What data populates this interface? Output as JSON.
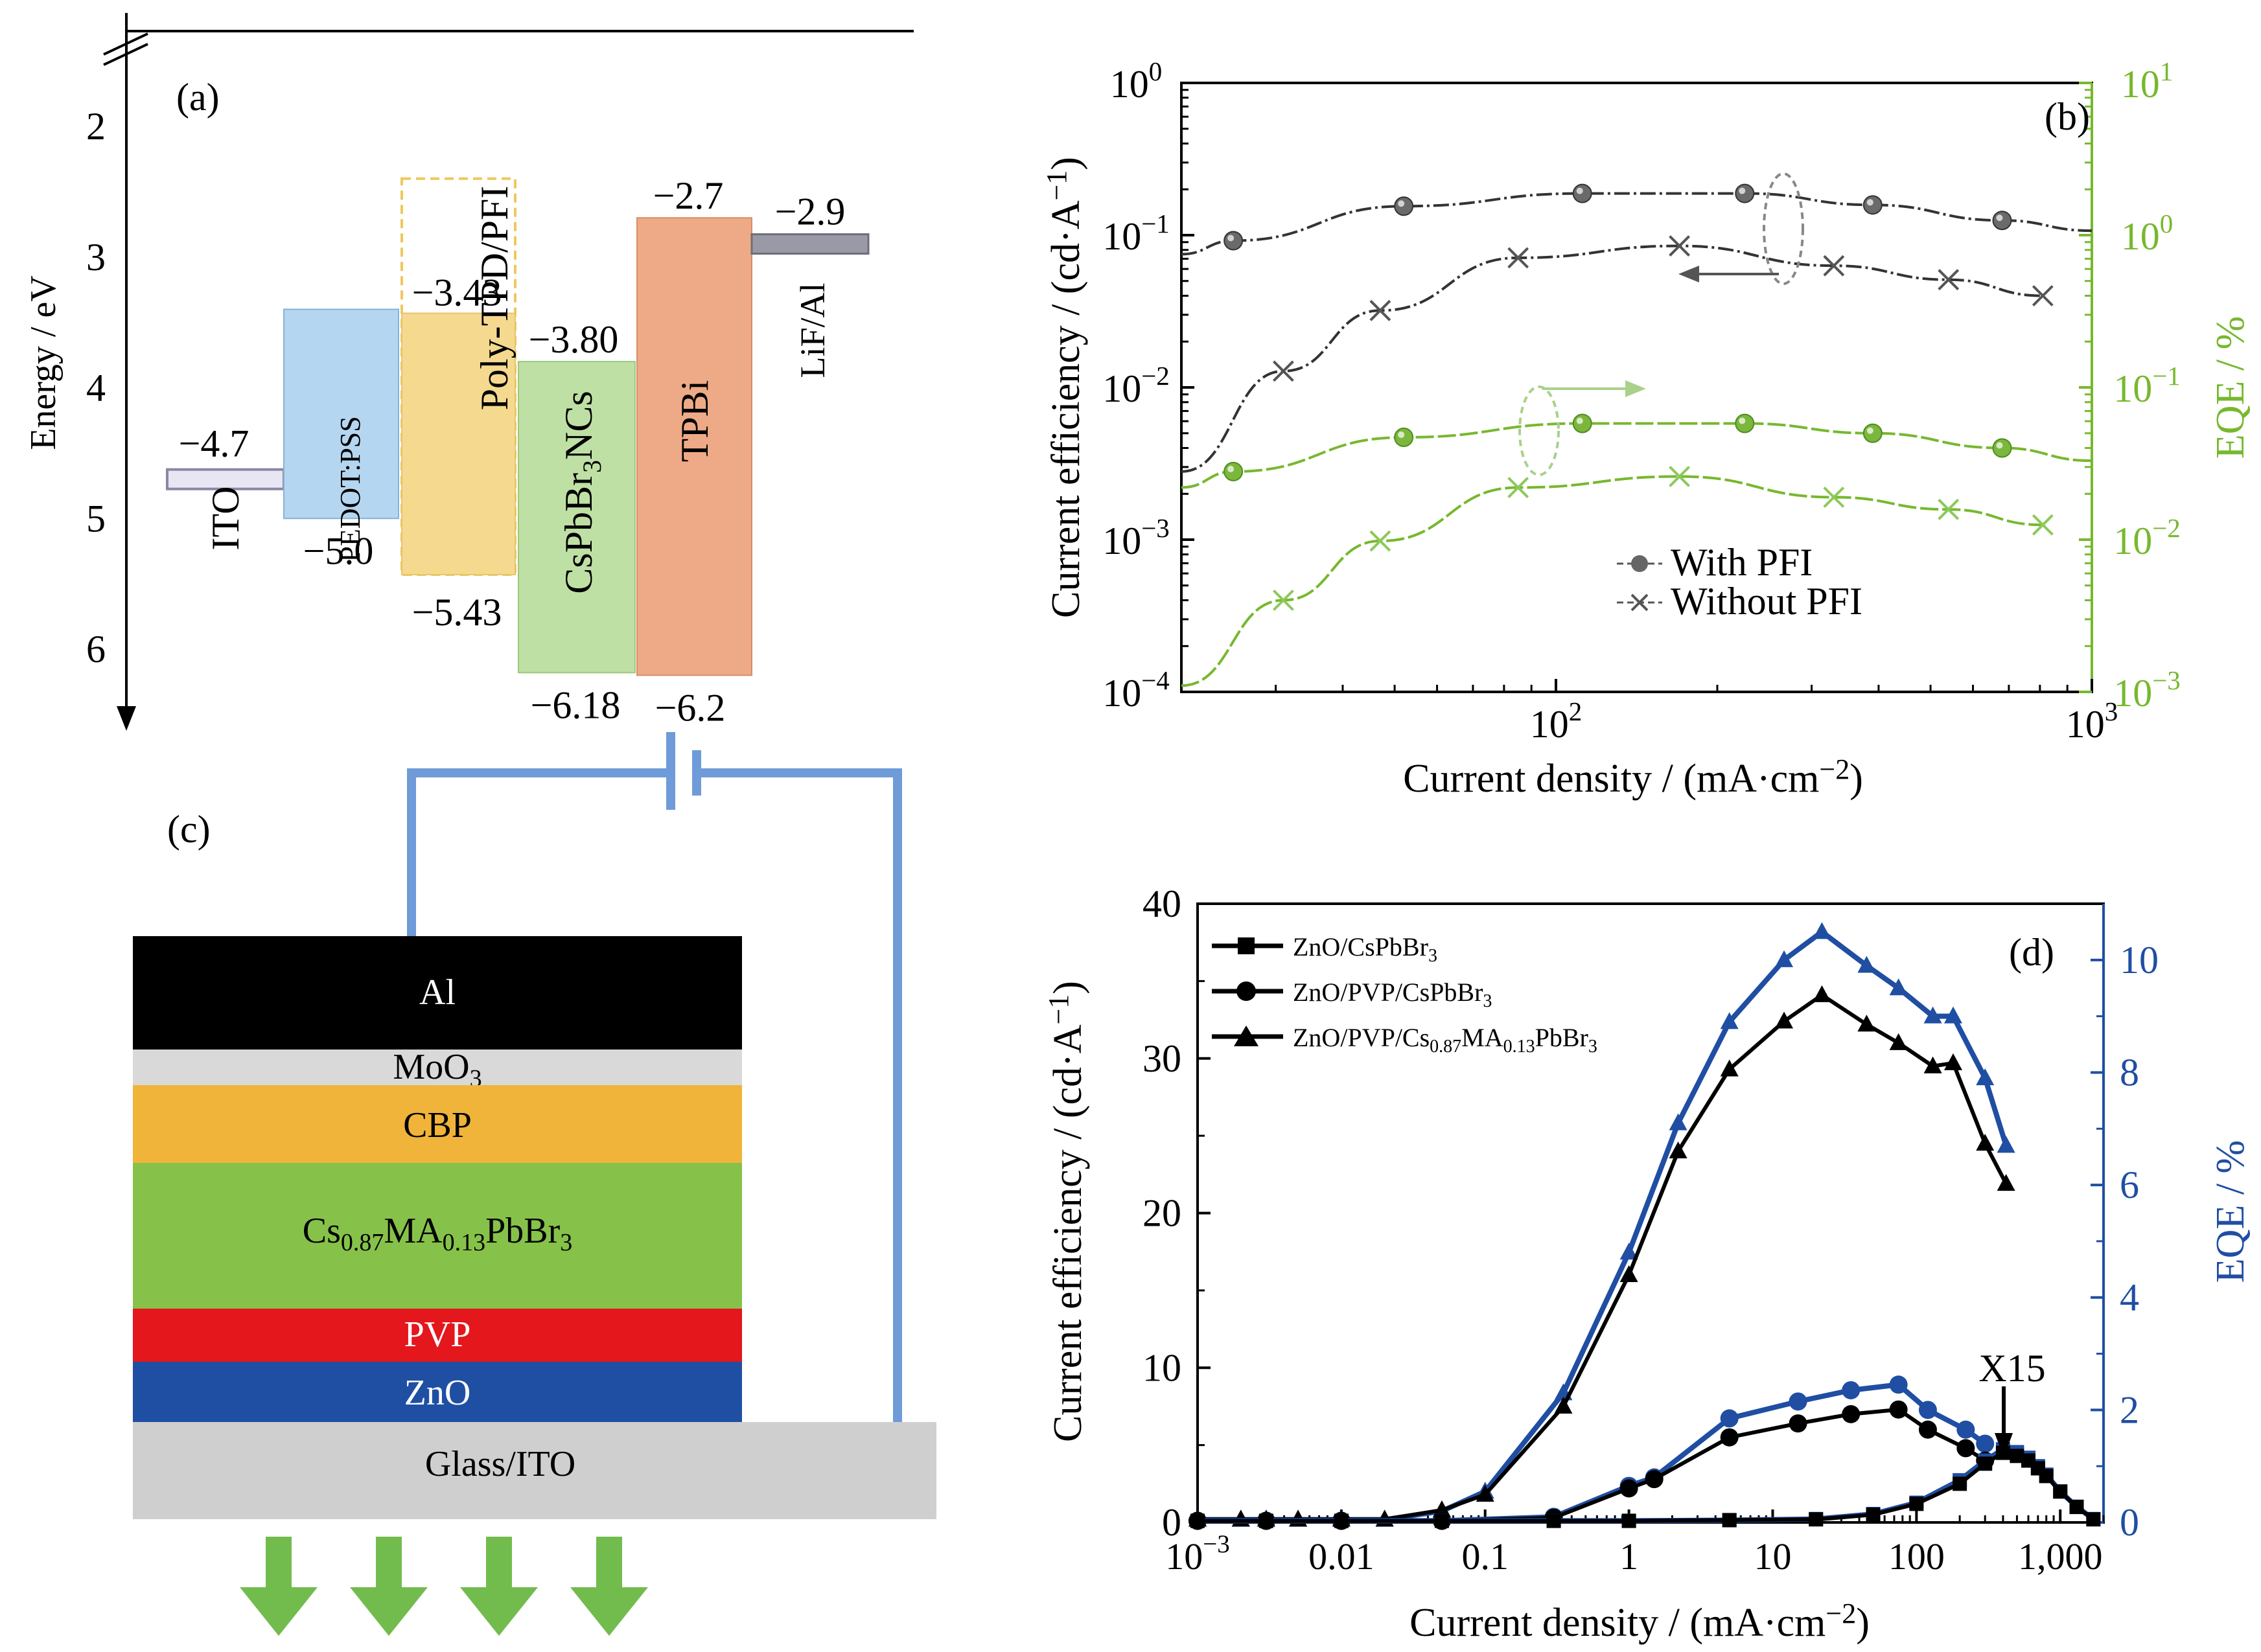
{
  "panels": {
    "a": {
      "label": "(a)"
    },
    "b": {
      "label": "(b)"
    },
    "c": {
      "label": "(c)"
    },
    "d": {
      "label": "(d)"
    }
  },
  "colors": {
    "ito": "#e8e6f2",
    "pedot": "#b5d6f0",
    "polytpd": "#f5d98e",
    "cspbbr3": "#bfe0a4",
    "tpbi": "#eeaa86",
    "lif": "#9a9aa6",
    "green_curve": "#77b82e",
    "blue_curve": "#1f4ea3",
    "wire": "#6f9bd8",
    "al_layer": "#000000",
    "moo3_layer": "#d9d9d9",
    "cbp_layer": "#f0b43a",
    "perov_layer": "#86c24a",
    "pvp_layer": "#e3171c",
    "zno_layer": "#1f4fa3",
    "glass_layer": "#cfcfcf",
    "arrow_green": "#72bc4e"
  },
  "chart_data": [
    {
      "id": "a",
      "type": "energy-level-diagram",
      "ylabel": "Energy / eV",
      "ylim": [
        1.0,
        7.0
      ],
      "y_inverted": true,
      "y_ticks": [
        "2",
        "3",
        "4",
        "5",
        "6"
      ],
      "layers": [
        {
          "name": "ITO",
          "top": -4.7,
          "bottom": -4.7,
          "labels": [
            "−4.7"
          ]
        },
        {
          "name": "PEDOT:PSS",
          "top": -3.4,
          "bottom": -5.0,
          "labels": [
            "−5.0"
          ]
        },
        {
          "name": "Poly-TPD/PFI",
          "top": -3.43,
          "bottom": -5.43,
          "labels": [
            "−3.43",
            "−5.43"
          ]
        },
        {
          "name": "CsPbBr3NCs",
          "display": [
            "CsPbBr",
            "3",
            "NCs"
          ],
          "top": -3.8,
          "bottom": -6.18,
          "labels": [
            "−3.80",
            "−6.18"
          ]
        },
        {
          "name": "TPBi",
          "top": -2.7,
          "bottom": -6.2,
          "labels": [
            "−2.7",
            "−6.2"
          ]
        },
        {
          "name": "LiF/Al",
          "top": -2.9,
          "bottom": -2.9,
          "labels": [
            "−2.9"
          ]
        }
      ]
    },
    {
      "id": "b",
      "type": "line",
      "xscale": "log",
      "yscale": "log",
      "xlim": [
        20,
        1000
      ],
      "ylim": [
        0.0001,
        1
      ],
      "y2lim": [
        0.001,
        10
      ],
      "xlabel": "Current density / (mA·cm",
      "xlabel_sup": "−2",
      "xlabel_end": ")",
      "ylabel": "Current efficiency / (cd·A",
      "ylabel_sup": "−1",
      "ylabel_end": ")",
      "y2label": "EQE / %",
      "x_ticks": [
        {
          "v": 100,
          "base": "10",
          "exp": "2"
        },
        {
          "v": 1000,
          "base": "10",
          "exp": "3"
        }
      ],
      "y_ticks": [
        {
          "v": 1,
          "base": "10",
          "exp": "0"
        },
        {
          "v": 0.1,
          "base": "10",
          "exp": "−1"
        },
        {
          "v": 0.01,
          "base": "10",
          "exp": "−2"
        },
        {
          "v": 0.001,
          "base": "10",
          "exp": "−3"
        },
        {
          "v": 0.0001,
          "base": "10",
          "exp": "−4"
        }
      ],
      "y2_ticks": [
        {
          "v": 10,
          "base": "10",
          "exp": "1"
        },
        {
          "v": 1,
          "base": "10",
          "exp": "0"
        },
        {
          "v": 0.1,
          "base": "10",
          "exp": "−1"
        },
        {
          "v": 0.01,
          "base": "10",
          "exp": "−2"
        },
        {
          "v": 0.001,
          "base": "10",
          "exp": "−3"
        }
      ],
      "legend": {
        "position": "bottom-center",
        "entries": [
          "With PFI",
          "Without PFI"
        ]
      },
      "series": [
        {
          "name": "With PFI",
          "axis": "left",
          "marker": "circle",
          "x": [
            20,
            25,
            52,
            112,
            225,
            390,
            680,
            1000
          ],
          "y": [
            0.075,
            0.092,
            0.155,
            0.188,
            0.188,
            0.158,
            0.125,
            0.107
          ],
          "marker_index": [
            1,
            2,
            3,
            4,
            5,
            6
          ]
        },
        {
          "name": "Without PFI",
          "axis": "left",
          "marker": "x",
          "x": [
            20,
            31,
            47,
            85,
            170,
            330,
            540,
            810
          ],
          "y": [
            0.0028,
            0.0128,
            0.032,
            0.071,
            0.085,
            0.063,
            0.051,
            0.04
          ],
          "marker_index": [
            1,
            2,
            3,
            4,
            5,
            6,
            7
          ]
        },
        {
          "name": "With PFI",
          "axis": "right",
          "marker": "circle",
          "x": [
            20,
            25,
            52,
            112,
            225,
            390,
            680,
            1000
          ],
          "y": [
            0.022,
            0.028,
            0.047,
            0.058,
            0.058,
            0.05,
            0.04,
            0.033
          ],
          "marker_index": [
            1,
            2,
            3,
            4,
            5,
            6
          ]
        },
        {
          "name": "Without PFI",
          "axis": "right",
          "marker": "x",
          "x": [
            20,
            31,
            47,
            85,
            170,
            330,
            540,
            810
          ],
          "y": [
            0.0011,
            0.004,
            0.0098,
            0.022,
            0.026,
            0.019,
            0.0158,
            0.0125
          ],
          "marker_index": [
            1,
            2,
            3,
            4,
            5,
            6,
            7
          ]
        }
      ]
    },
    {
      "id": "c",
      "type": "device-stack",
      "layers": [
        {
          "key": "al",
          "label": "Al"
        },
        {
          "key": "moo3",
          "label": "MoO",
          "sub": "3"
        },
        {
          "key": "cbp",
          "label": "CBP"
        },
        {
          "key": "perov",
          "parts": [
            [
              "Cs",
              ""
            ],
            [
              "0.87",
              "sub"
            ],
            [
              "MA",
              ""
            ],
            [
              "0.13",
              "sub"
            ],
            [
              "PbBr",
              ""
            ],
            [
              "3",
              "sub"
            ]
          ]
        },
        {
          "key": "pvp",
          "label": "PVP"
        },
        {
          "key": "zno",
          "label": "ZnO"
        },
        {
          "key": "glass",
          "label": "Glass/ITO"
        }
      ]
    },
    {
      "id": "d",
      "type": "line",
      "xscale": "log",
      "xlim": [
        0.001,
        2000
      ],
      "ylim": [
        0,
        40
      ],
      "y2lim": [
        0,
        11
      ],
      "xlabel": "Current density / (mA·cm",
      "xlabel_sup": "−2",
      "xlabel_end": ")",
      "ylabel": "Current efficiency / (cd·A",
      "ylabel_sup": "−1",
      "ylabel_end": ")",
      "y2label": "EQE / %",
      "x_ticks": [
        {
          "v": 0.001,
          "base": "10",
          "exp": "−3"
        },
        {
          "v": 0.01,
          "t": "0.01"
        },
        {
          "v": 0.1,
          "t": "0.1"
        },
        {
          "v": 1,
          "t": "1"
        },
        {
          "v": 10,
          "t": "10"
        },
        {
          "v": 100,
          "t": "100"
        },
        {
          "v": 1000,
          "t": "1,000"
        }
      ],
      "y_ticks": [
        "0",
        "10",
        "20",
        "30",
        "40"
      ],
      "y2_ticks": [
        "0",
        "2",
        "4",
        "6",
        "8",
        "10"
      ],
      "annotation": "X15",
      "legend": {
        "position": "top-left",
        "entries": [
          {
            "marker": "square",
            "parts": [
              [
                "ZnO/CsPbBr",
                ""
              ],
              [
                "3",
                "sub"
              ]
            ]
          },
          {
            "marker": "circle",
            "parts": [
              [
                "ZnO/PVP/CsPbBr",
                ""
              ],
              [
                "3",
                "sub"
              ]
            ]
          },
          {
            "marker": "triangle",
            "parts": [
              [
                "ZnO/PVP/Cs",
                ""
              ],
              [
                "0.87",
                "sub"
              ],
              [
                "MA",
                ""
              ],
              [
                "0.13",
                "sub"
              ],
              [
                "PbBr",
                ""
              ],
              [
                "3",
                "sub"
              ]
            ]
          }
        ]
      },
      "series": [
        {
          "name": "ZnO/PVP/Cs0.87MA0.13PbBr3",
          "axis": "left",
          "marker": "triangle",
          "x": [
            0.001,
            0.002,
            0.003,
            0.005,
            0.01,
            0.02,
            0.05,
            0.1,
            0.35,
            1,
            2.2,
            5,
            12,
            22,
            45,
            75,
            130,
            180,
            300,
            420
          ],
          "y": [
            0.2,
            0.2,
            0.2,
            0.2,
            0.2,
            0.2,
            0.8,
            1.8,
            7.5,
            16,
            24,
            29.3,
            32.4,
            34.1,
            32.2,
            31,
            29.5,
            29.7,
            24.5,
            21.9
          ]
        },
        {
          "name": "ZnO/PVP/Cs0.87MA0.13PbBr3",
          "axis": "right",
          "marker": "triangle",
          "x": [
            0.001,
            0.002,
            0.003,
            0.005,
            0.01,
            0.02,
            0.05,
            0.1,
            0.35,
            1,
            2.2,
            5,
            12,
            22,
            45,
            75,
            130,
            180,
            300,
            420
          ],
          "y": [
            0.05,
            0.05,
            0.05,
            0.05,
            0.05,
            0.05,
            0.2,
            0.55,
            2.3,
            4.8,
            7.1,
            8.9,
            10,
            10.5,
            9.9,
            9.5,
            9.0,
            9.0,
            7.9,
            6.7
          ]
        },
        {
          "name": "ZnO/PVP/CsPbBr3",
          "axis": "left",
          "marker": "circle",
          "x": [
            0.001,
            0.003,
            0.01,
            0.05,
            0.3,
            1,
            1.5,
            5,
            15,
            35,
            75,
            120,
            220,
            300
          ],
          "y": [
            0.1,
            0.1,
            0.1,
            0.1,
            0.3,
            2.2,
            2.8,
            5.5,
            6.4,
            7.0,
            7.3,
            6.0,
            4.8,
            4.0
          ]
        },
        {
          "name": "ZnO/PVP/CsPbBr3",
          "axis": "right",
          "marker": "circle",
          "x": [
            0.001,
            0.003,
            0.01,
            0.05,
            0.3,
            1,
            1.5,
            5,
            15,
            35,
            75,
            120,
            220,
            300
          ],
          "y": [
            0.03,
            0.03,
            0.03,
            0.03,
            0.1,
            0.65,
            0.8,
            1.85,
            2.15,
            2.35,
            2.45,
            2.0,
            1.65,
            1.4
          ]
        },
        {
          "name": "ZnO/CsPbBr3",
          "axis": "left",
          "marker": "square",
          "x": [
            0.001,
            0.003,
            0.01,
            0.05,
            0.3,
            1,
            5,
            20,
            50,
            100,
            200,
            300,
            400,
            500,
            600,
            700,
            800,
            1000,
            1300,
            1700
          ],
          "y": [
            0.1,
            0.1,
            0.1,
            0.1,
            0.1,
            0.1,
            0.15,
            0.2,
            0.5,
            1.2,
            2.5,
            3.8,
            4.5,
            4.3,
            4.0,
            3.5,
            3.0,
            2.0,
            1.0,
            0.2
          ]
        },
        {
          "name": "ZnO/CsPbBr3",
          "axis": "right",
          "marker": "square",
          "x": [
            0.001,
            0.003,
            0.01,
            0.05,
            0.3,
            1,
            5,
            20,
            50,
            100,
            200,
            300,
            400,
            500,
            600,
            700,
            800,
            1000,
            1300,
            1700
          ],
          "y": [
            0.03,
            0.03,
            0.03,
            0.03,
            0.03,
            0.03,
            0.04,
            0.06,
            0.15,
            0.35,
            0.75,
            1.1,
            1.3,
            1.25,
            1.15,
            1.0,
            0.85,
            0.55,
            0.28,
            0.06
          ]
        }
      ]
    }
  ]
}
